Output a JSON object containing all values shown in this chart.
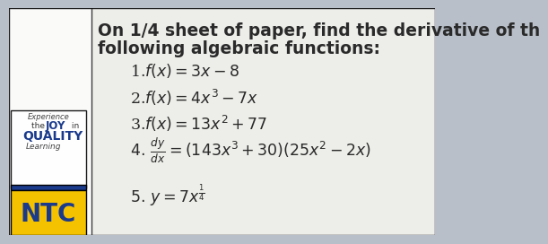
{
  "bg_color_left": "#f0eeea",
  "bg_color_right": "#b8bfc8",
  "title_line1": "On 1/4 sheet of paper, find the derivative of th",
  "title_line2": "following algebraic functions:",
  "items": [
    "1.$f(x) = 3x-8$",
    "2.$f(x) = 4x^3-7x$",
    "3.$f(x) = 13x^2+77$",
    "4_frac",
    "5.$y = 7x^{\\frac{1}{4}}$"
  ],
  "sidebar_bg": "#f5f3ef",
  "sidebar_blue": "#1a3a8c",
  "sidebar_yellow": "#f5c200",
  "ntc_color": "#1a3a8c",
  "title_fontsize": 13.5,
  "item_fontsize": 12.5,
  "text_color": "#2a2a2a"
}
